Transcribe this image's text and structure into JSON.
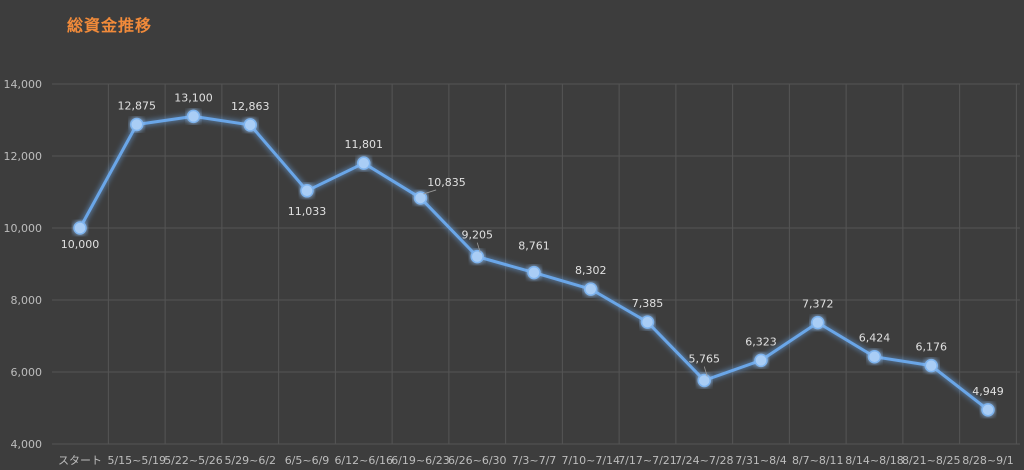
{
  "chart_title": "総資金推移",
  "colors": {
    "background": "#3d3d3d",
    "title": "#f08a3a",
    "line": "#6aa6e8",
    "marker": "#a9cdf5",
    "grid": "#555555",
    "text": "#bdbdbd"
  },
  "chart_data": {
    "type": "line",
    "title": "総資金推移",
    "xlabel": "",
    "ylabel": "",
    "ylim": [
      4000,
      14000
    ],
    "yticks": [
      4000,
      6000,
      8000,
      10000,
      12000,
      14000
    ],
    "ytick_labels": [
      "4,000",
      "6,000",
      "8,000",
      "10,000",
      "12,000",
      "14,000"
    ],
    "grid": true,
    "legend": "none",
    "categories": [
      "スタート",
      "5/15~5/19",
      "5/22~5/26",
      "5/29~6/2",
      "6/5~6/9",
      "6/12~6/16",
      "6/19~6/23",
      "6/26~6/30",
      "7/3~7/7",
      "7/10~7/14",
      "7/17~7/21",
      "7/24~7/28",
      "7/31~8/4",
      "8/7~8/11",
      "8/14~8/18",
      "8/21~8/25",
      "8/28~9/1"
    ],
    "series": [
      {
        "values": [
          10000,
          12875,
          13100,
          12863,
          11033,
          11801,
          10835,
          9205,
          8761,
          8302,
          7385,
          5765,
          6323,
          7372,
          6424,
          6176,
          4949
        ],
        "labels": [
          "10,000",
          "12,875",
          "13,100",
          "12,863",
          "11,033",
          "11,801",
          "10,835",
          "9,205",
          "8,761",
          "8,302",
          "7,385",
          "5,765",
          "6,323",
          "7,372",
          "6,424",
          "6,176",
          "4,949"
        ]
      }
    ]
  }
}
